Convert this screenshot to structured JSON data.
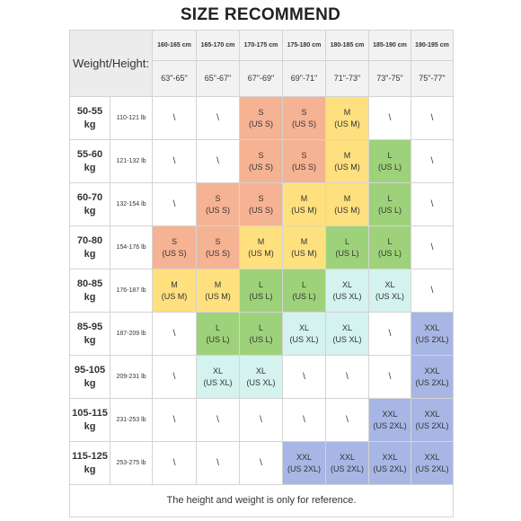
{
  "title": "SIZE RECOMMEND",
  "corner_label": "Weight/Height:",
  "heights_cm": [
    "160-165 cm",
    "165-170 cm",
    "170-175 cm",
    "175-180 cm",
    "180-185 cm",
    "185-190 cm",
    "190-195 cm"
  ],
  "heights_in": [
    "63\"-65\"",
    "65\"-67\"",
    "67\"-69\"",
    "69\"-71\"",
    "71\"-73\"",
    "73\"-75\"",
    "75\"-77\""
  ],
  "rows": [
    {
      "kg": "50-55 kg",
      "lb": "110-121 lb",
      "cells": [
        "\\",
        "\\",
        "S|(US S)",
        "S|(US S)",
        "M|(US M)",
        "\\",
        "\\"
      ]
    },
    {
      "kg": "55-60 kg",
      "lb": "121-132 lb",
      "cells": [
        "\\",
        "\\",
        "S|(US S)",
        "S|(US S)",
        "M|(US M)",
        "L|(US L)",
        "\\"
      ]
    },
    {
      "kg": "60-70 kg",
      "lb": "132-154 lb",
      "cells": [
        "\\",
        "S|(US S)",
        "S|(US S)",
        "M|(US M)",
        "M|(US M)",
        "L|(US L)",
        "\\"
      ]
    },
    {
      "kg": "70-80 kg",
      "lb": "154-176 lb",
      "cells": [
        "S|(US S)",
        "S|(US S)",
        "M|(US M)",
        "M|(US M)",
        "L|(US L)",
        "L|(US L)",
        "\\"
      ]
    },
    {
      "kg": "80-85 kg",
      "lb": "176-187 lb",
      "cells": [
        "M|(US M)",
        "M|(US M)",
        "L|(US L)",
        "L|(US L)",
        "XL|(US XL)",
        "XL|(US XL)",
        "\\"
      ]
    },
    {
      "kg": "85-95 kg",
      "lb": "187-209 lb",
      "cells": [
        "\\",
        "L|(US L)",
        "L|(US L)",
        "XL|(US XL)",
        "XL|(US XL)",
        "\\",
        "XXL|(US 2XL)"
      ]
    },
    {
      "kg": "95-105 kg",
      "lb": "209-231 lb",
      "cells": [
        "\\",
        "XL|(US XL)",
        "XL|(US XL)",
        "\\",
        "\\",
        "\\",
        "XXL|(US 2XL)"
      ]
    },
    {
      "kg": "105-115 kg",
      "lb": "231-253 lb",
      "cells": [
        "\\",
        "\\",
        "\\",
        "\\",
        "\\",
        "XXL|(US 2XL)",
        "XXL|(US 2XL)"
      ]
    },
    {
      "kg": "115-125 kg",
      "lb": "253-275 lb",
      "cells": [
        "\\",
        "\\",
        "\\",
        "XXL|(US 2XL)",
        "XXL|(US 2XL)",
        "XXL|(US 2XL)",
        "XXL|(US 2XL)"
      ]
    }
  ],
  "size_colors": {
    "S": "#f6b394",
    "M": "#ffe07f",
    "L": "#9ed27a",
    "XL": "#d4f2ee",
    "XXL": "#a7b6e4"
  },
  "footnote": "The height and weight is only for reference."
}
